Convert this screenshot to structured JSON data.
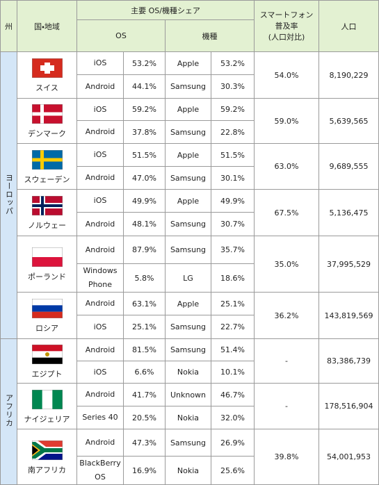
{
  "header": {
    "region": "州",
    "country": "国・地域",
    "share_group": "主要 OS/機種シェア",
    "os": "OS",
    "device": "機種",
    "penetration": [
      "スマートフォン",
      "普及率",
      "(人口対比)"
    ],
    "population": "人口"
  },
  "regions": [
    {
      "name": "ヨーロッパ",
      "countries": [
        {
          "name": "スイス",
          "rows": [
            {
              "os": "iOS",
              "os_share": "53.2%",
              "device": "Apple",
              "device_share": "53.2%"
            },
            {
              "os": "Android",
              "os_share": "44.1%",
              "device": "Samsung",
              "device_share": "30.3%"
            }
          ],
          "penetration": "54.0%",
          "population": "8,190,229"
        },
        {
          "name": "デンマーク",
          "rows": [
            {
              "os": "iOS",
              "os_share": "59.2%",
              "device": "Apple",
              "device_share": "59.2%"
            },
            {
              "os": "Android",
              "os_share": "37.8%",
              "device": "Samsung",
              "device_share": "22.8%"
            }
          ],
          "penetration": "59.0%",
          "population": "5,639,565"
        },
        {
          "name": "スウェーデン",
          "rows": [
            {
              "os": "iOS",
              "os_share": "51.5%",
              "device": "Apple",
              "device_share": "51.5%"
            },
            {
              "os": "Android",
              "os_share": "47.0%",
              "device": "Samsung",
              "device_share": "30.1%"
            }
          ],
          "penetration": "63.0%",
          "population": "9,689,555"
        },
        {
          "name": "ノルウェー",
          "rows": [
            {
              "os": "iOS",
              "os_share": "49.9%",
              "device": "Apple",
              "device_share": "49.9%"
            },
            {
              "os": "Android",
              "os_share": "48.1%",
              "device": "Samsung",
              "device_share": "30.7%"
            }
          ],
          "penetration": "67.5%",
          "population": "5,136,475"
        },
        {
          "name": "ポーランド",
          "rows": [
            {
              "os": "Android",
              "os_share": "87.9%",
              "device": "Samsung",
              "device_share": "35.7%"
            },
            {
              "os": "Windows Phone",
              "os_share": "5.8%",
              "device": "LG",
              "device_share": "18.6%"
            }
          ],
          "penetration": "35.0%",
          "population": "37,995,529"
        },
        {
          "name": "ロシア",
          "rows": [
            {
              "os": "Android",
              "os_share": "63.1%",
              "device": "Apple",
              "device_share": "25.1%"
            },
            {
              "os": "iOS",
              "os_share": "25.1%",
              "device": "Samsung",
              "device_share": "22.7%"
            }
          ],
          "penetration": "36.2%",
          "population": "143,819,569"
        }
      ]
    },
    {
      "name": "アフリカ",
      "countries": [
        {
          "name": "エジプト",
          "rows": [
            {
              "os": "Android",
              "os_share": "81.5%",
              "device": "Samsung",
              "device_share": "51.4%"
            },
            {
              "os": "iOS",
              "os_share": "6.6%",
              "device": "Nokia",
              "device_share": "10.1%"
            }
          ],
          "penetration": "-",
          "population": "83,386,739"
        },
        {
          "name": "ナイジェリア",
          "rows": [
            {
              "os": "Android",
              "os_share": "41.7%",
              "device": "Unknown",
              "device_share": "46.7%"
            },
            {
              "os": "Series 40",
              "os_share": "20.5%",
              "device": "Nokia",
              "device_share": "32.0%"
            }
          ],
          "penetration": "-",
          "population": "178,516,904"
        },
        {
          "name": "南アフリカ",
          "rows": [
            {
              "os": "Android",
              "os_share": "47.3%",
              "device": "Samsung",
              "device_share": "26.9%"
            },
            {
              "os": "BlackBerry OS",
              "os_share": "16.9%",
              "device": "Nokia",
              "device_share": "25.6%"
            }
          ],
          "penetration": "39.8%",
          "population": "54,001,953"
        }
      ]
    }
  ]
}
